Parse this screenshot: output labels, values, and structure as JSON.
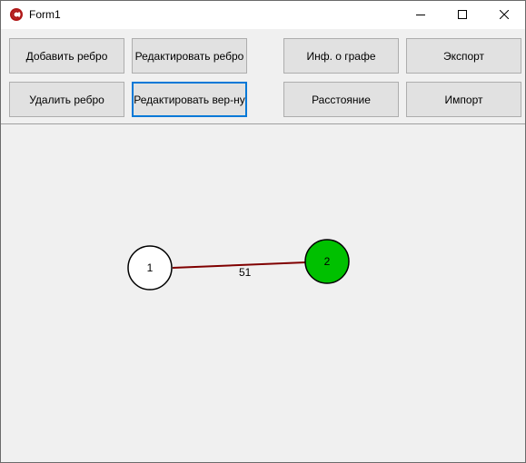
{
  "window": {
    "title": "Form1",
    "app_icon": "app-logo-icon",
    "controls": [
      "minimize-icon",
      "maximize-icon",
      "close-icon"
    ]
  },
  "toolbar": {
    "add_edge": "Добавить ребро",
    "edit_edge": "Редактировать ребро",
    "graph_info": "Инф. о графе",
    "export": "Экспорт",
    "delete_edge": "Удалить ребро",
    "edit_vertex": "Редактировать вер-ну",
    "distance": "Расстояние",
    "import": "Импорт"
  },
  "graph": {
    "nodes": [
      {
        "id": "1",
        "label": "1",
        "fill": "#ffffff",
        "stroke": "#000000"
      },
      {
        "id": "2",
        "label": "2",
        "fill": "#00c000",
        "stroke": "#000000"
      }
    ],
    "edges": [
      {
        "from": "1",
        "to": "2",
        "weight": "51",
        "color": "#800000"
      }
    ]
  },
  "colors": {
    "focus_border": "#0078d7",
    "button_face": "#e1e1e1",
    "form_background": "#f0f0f0"
  }
}
